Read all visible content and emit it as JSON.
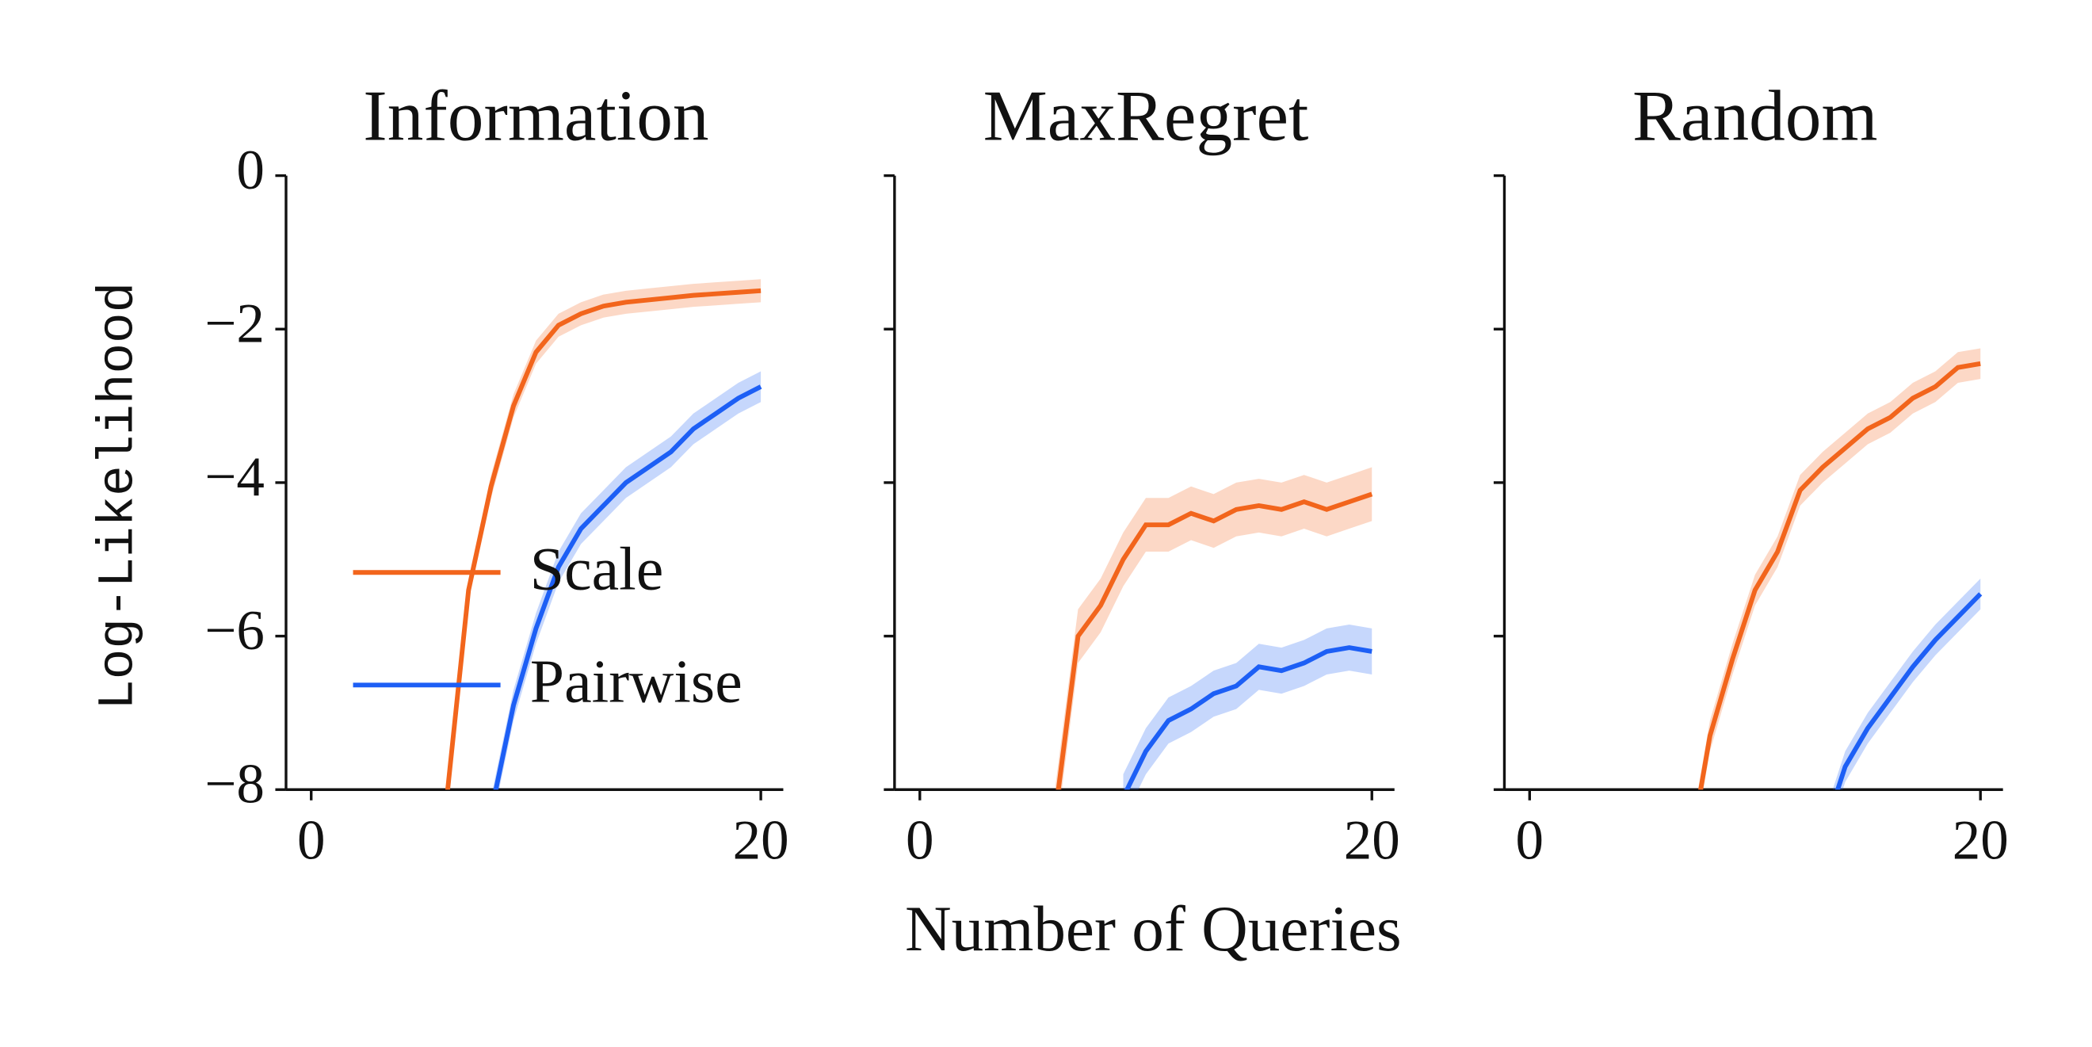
{
  "chart_data": [
    {
      "type": "line",
      "title": "Information",
      "ylabel": "Log-Likelihood",
      "x": [
        0,
        1,
        2,
        3,
        4,
        5,
        6,
        7,
        8,
        9,
        10,
        11,
        12,
        13,
        14,
        15,
        16,
        17,
        18,
        19,
        20
      ],
      "xlim": [
        -1,
        21
      ],
      "xticks": [
        0,
        20
      ],
      "ylim": [
        -8,
        0
      ],
      "yticks": [
        0,
        {
          "value": -2,
          "label": "−2"
        },
        {
          "value": -4,
          "label": "−4"
        },
        {
          "value": -6,
          "label": "−6"
        },
        {
          "value": -8,
          "label": "−8"
        }
      ],
      "legend": "center left",
      "series": [
        {
          "name": "Scale",
          "color": "#f2651c",
          "error": 0.15,
          "values": [
            null,
            null,
            null,
            null,
            null,
            null,
            -8.2,
            -5.4,
            -4.05,
            -3.0,
            -2.3,
            -1.95,
            -1.8,
            -1.7,
            -1.65,
            -1.62,
            -1.59,
            -1.56,
            -1.54,
            -1.52,
            -1.5
          ]
        },
        {
          "name": "Pairwise",
          "color": "#1d5ff5",
          "error": 0.2,
          "values": [
            null,
            null,
            null,
            null,
            null,
            null,
            null,
            null,
            -8.3,
            -6.9,
            -5.9,
            -5.1,
            -4.6,
            -4.3,
            -4.0,
            -3.8,
            -3.6,
            -3.3,
            -3.1,
            -2.9,
            -2.75
          ]
        }
      ]
    },
    {
      "type": "line",
      "title": "MaxRegret",
      "xlabel": "Number of Queries",
      "x": [
        0,
        1,
        2,
        3,
        4,
        5,
        6,
        7,
        8,
        9,
        10,
        11,
        12,
        13,
        14,
        15,
        16,
        17,
        18,
        19,
        20
      ],
      "xlim": [
        -1,
        21
      ],
      "xticks": [
        0,
        20
      ],
      "ylim": [
        -8,
        0
      ],
      "yticks": [
        0,
        -2,
        -4,
        -6,
        -8
      ],
      "series": [
        {
          "name": "Scale",
          "color": "#f2651c",
          "error": 0.35,
          "values": [
            null,
            null,
            null,
            null,
            null,
            null,
            -8.3,
            -6.0,
            -5.6,
            -5.0,
            -4.55,
            -4.55,
            -4.4,
            -4.5,
            -4.35,
            -4.3,
            -4.35,
            -4.25,
            -4.35,
            -4.25,
            -4.15
          ]
        },
        {
          "name": "Pairwise",
          "color": "#1d5ff5",
          "error": 0.3,
          "values": [
            null,
            null,
            null,
            null,
            null,
            null,
            null,
            null,
            null,
            -8.1,
            -7.5,
            -7.1,
            -6.95,
            -6.75,
            -6.65,
            -6.4,
            -6.45,
            -6.35,
            -6.2,
            -6.15,
            -6.2
          ]
        }
      ]
    },
    {
      "type": "line",
      "title": "Random",
      "x": [
        0,
        1,
        2,
        3,
        4,
        5,
        6,
        7,
        8,
        9,
        10,
        11,
        12,
        13,
        14,
        15,
        16,
        17,
        18,
        19,
        20
      ],
      "xlim": [
        -1,
        21
      ],
      "xticks": [
        0,
        20
      ],
      "ylim": [
        -8,
        0
      ],
      "yticks": [
        0,
        -2,
        -4,
        -6,
        -8
      ],
      "series": [
        {
          "name": "Scale",
          "color": "#f2651c",
          "error": 0.2,
          "values": [
            null,
            null,
            null,
            null,
            null,
            null,
            null,
            -9.0,
            -7.3,
            -6.3,
            -5.4,
            -4.9,
            -4.1,
            -3.8,
            -3.55,
            -3.3,
            -3.15,
            -2.9,
            -2.75,
            -2.5,
            -2.45
          ]
        },
        {
          "name": "Pairwise",
          "color": "#1d5ff5",
          "error": 0.2,
          "values": [
            null,
            null,
            null,
            null,
            null,
            null,
            null,
            null,
            null,
            null,
            null,
            null,
            null,
            -8.6,
            -7.7,
            -7.2,
            -6.8,
            -6.4,
            -6.05,
            -5.75,
            -5.45
          ]
        }
      ]
    }
  ]
}
